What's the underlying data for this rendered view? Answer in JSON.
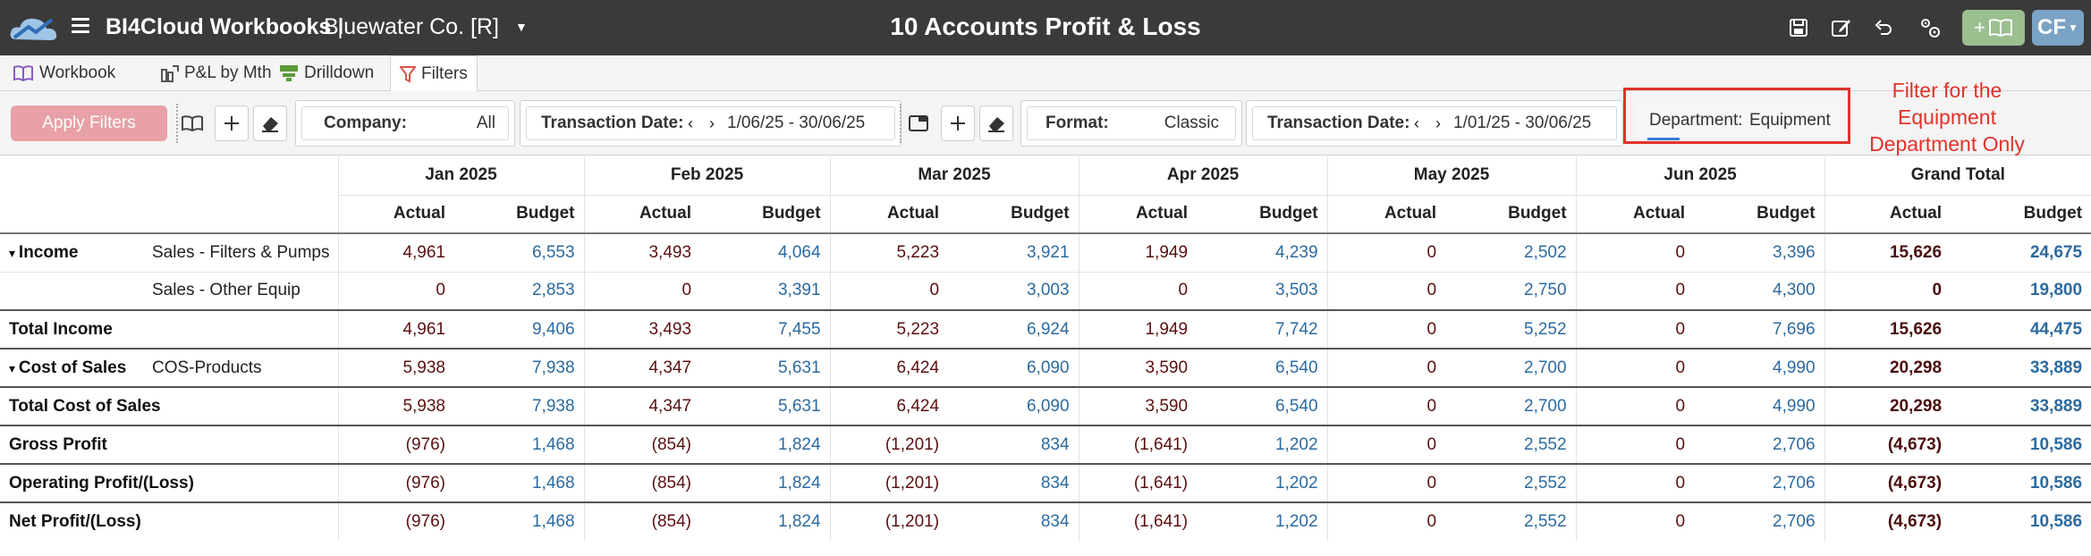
{
  "app": {
    "title": "BI4Cloud Workbooks",
    "separator": " | ",
    "company": "Bluewater Co. [R]",
    "report_title": "10 Accounts Profit & Loss",
    "user_initials": "CF",
    "add_workbook_label": "+",
    "colors": {
      "topbar": "#3a3a3a",
      "accent_green": "#9bbf8e",
      "avatar": "#7aa2c4",
      "callout": "#e0332a"
    }
  },
  "tabs": [
    {
      "label": "Workbook",
      "icon": "book-icon",
      "active": false
    },
    {
      "label": "P&L by Mth",
      "icon": "pl-chart-icon",
      "active": false
    },
    {
      "label": "Drilldown",
      "icon": "drilldown-icon",
      "active": false
    },
    {
      "label": "Filters",
      "icon": "filter-icon",
      "active": true
    }
  ],
  "filters": {
    "apply_label": "Apply Filters",
    "company_label": "Company:",
    "company_value": "All",
    "txn_date_label_1": "Transaction Date:",
    "txn_date_value_1": "1/06/25 - 30/06/25",
    "format_label": "Format:",
    "format_value": "Classic",
    "txn_date_label_2": "Transaction Date:",
    "txn_date_value_2": "1/01/25 - 30/06/25",
    "department_label": "Department:",
    "department_value": "Equipment",
    "callout": "Filter for the Equipment Department Only"
  },
  "table": {
    "months": [
      "Jan 2025",
      "Feb 2025",
      "Mar 2025",
      "Apr 2025",
      "May 2025",
      "Jun 2025",
      "Grand Total"
    ],
    "sub_headers": [
      "Actual",
      "Budget"
    ],
    "rows": [
      {
        "cat": "Income",
        "sub": "Sales - Filters & Pumps",
        "total": false,
        "vals": [
          "4,961",
          "6,553",
          "3,493",
          "4,064",
          "5,223",
          "3,921",
          "1,949",
          "4,239",
          "0",
          "2,502",
          "0",
          "3,396",
          "15,626",
          "24,675"
        ]
      },
      {
        "cat": "",
        "sub": "Sales - Other Equip",
        "total": false,
        "vals": [
          "0",
          "2,853",
          "0",
          "3,391",
          "0",
          "3,003",
          "0",
          "3,503",
          "0",
          "2,750",
          "0",
          "4,300",
          "0",
          "19,800"
        ]
      },
      {
        "cat": "Total Income",
        "sub": "",
        "total": true,
        "vals": [
          "4,961",
          "9,406",
          "3,493",
          "7,455",
          "5,223",
          "6,924",
          "1,949",
          "7,742",
          "0",
          "5,252",
          "0",
          "7,696",
          "15,626",
          "44,475"
        ]
      },
      {
        "cat": "Cost of Sales",
        "sub": "COS-Products",
        "total": true,
        "vals": [
          "5,938",
          "7,938",
          "4,347",
          "5,631",
          "6,424",
          "6,090",
          "3,590",
          "6,540",
          "0",
          "2,700",
          "0",
          "4,990",
          "20,298",
          "33,889"
        ]
      },
      {
        "cat": "Total Cost of Sales",
        "sub": "",
        "total": true,
        "vals": [
          "5,938",
          "7,938",
          "4,347",
          "5,631",
          "6,424",
          "6,090",
          "3,590",
          "6,540",
          "0",
          "2,700",
          "0",
          "4,990",
          "20,298",
          "33,889"
        ]
      },
      {
        "cat": "Gross Profit",
        "sub": "",
        "total": true,
        "vals": [
          "(976)",
          "1,468",
          "(854)",
          "1,824",
          "(1,201)",
          "834",
          "(1,641)",
          "1,202",
          "0",
          "2,552",
          "0",
          "2,706",
          "(4,673)",
          "10,586"
        ]
      },
      {
        "cat": "Operating Profit/(Loss)",
        "sub": "",
        "total": true,
        "vals": [
          "(976)",
          "1,468",
          "(854)",
          "1,824",
          "(1,201)",
          "834",
          "(1,641)",
          "1,202",
          "0",
          "2,552",
          "0",
          "2,706",
          "(4,673)",
          "10,586"
        ]
      },
      {
        "cat": "Net Profit/(Loss)",
        "sub": "",
        "total": true,
        "vals": [
          "(976)",
          "1,468",
          "(854)",
          "1,824",
          "(1,201)",
          "834",
          "(1,641)",
          "1,202",
          "0",
          "2,552",
          "0",
          "2,706",
          "(4,673)",
          "10,586"
        ]
      }
    ]
  }
}
